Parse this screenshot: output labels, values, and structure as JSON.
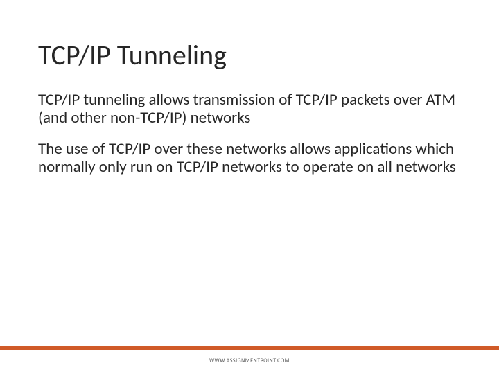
{
  "slide": {
    "title": "TCP/IP Tunneling",
    "paragraphs": [
      "TCP/IP tunneling allows transmission of TCP/IP packets over ATM (and other non-TCP/IP) networks",
      "The use of TCP/IP over these networks allows applications which normally only run on TCP/IP networks to operate on all networks"
    ],
    "footer": "WWW.ASSIGNMENTPOINT.COM"
  },
  "style": {
    "background_color": "#ffffff",
    "title_color": "#262626",
    "title_fontsize": 40,
    "title_underline_color": "#404040",
    "body_color": "#262626",
    "body_fontsize": 23,
    "footer_bar_color": "#ffffff",
    "footer_accent_color": "#d05a28",
    "footer_text_color": "#555555",
    "footer_fontsize": 8
  }
}
